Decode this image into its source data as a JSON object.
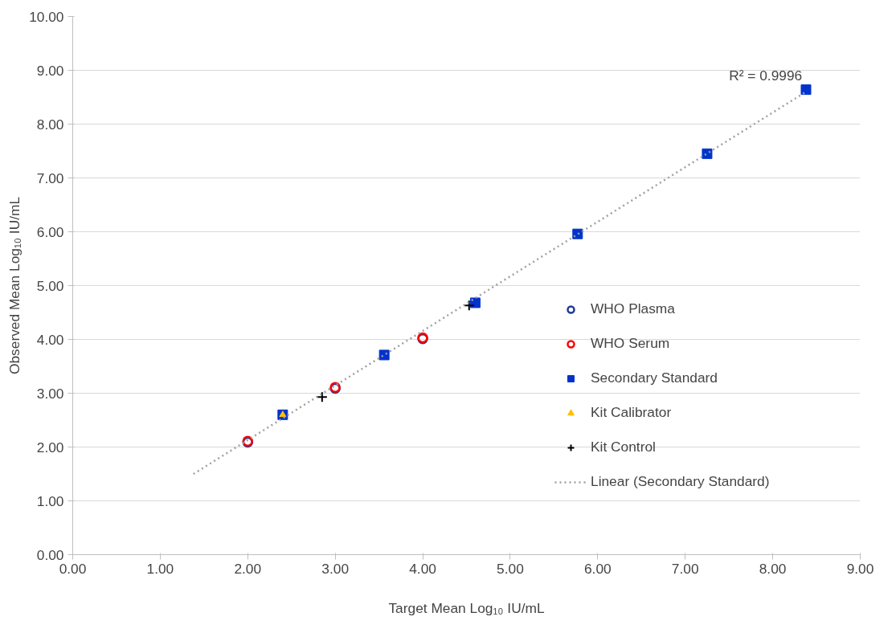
{
  "chart_data": {
    "type": "scatter",
    "xlabel": "Target Mean Log₁₀ IU/mL",
    "ylabel": "Observed Mean Log₁₀ IU/mL",
    "annotations": [
      "R² = 0.9996"
    ],
    "xlim": [
      0,
      9
    ],
    "ylim": [
      0,
      10
    ],
    "xticks": [
      {
        "value": 0,
        "label": "0.00"
      },
      {
        "value": 1,
        "label": "1.00"
      },
      {
        "value": 2,
        "label": "2.00"
      },
      {
        "value": 3,
        "label": "3.00"
      },
      {
        "value": 4,
        "label": "4.00"
      },
      {
        "value": 5,
        "label": "5.00"
      },
      {
        "value": 6,
        "label": "6.00"
      },
      {
        "value": 7,
        "label": "7.00"
      },
      {
        "value": 8,
        "label": "8.00"
      },
      {
        "value": 9,
        "label": "9.00"
      }
    ],
    "yticks": [
      {
        "value": 0,
        "label": "0.00"
      },
      {
        "value": 1,
        "label": "1.00"
      },
      {
        "value": 2,
        "label": "2.00"
      },
      {
        "value": 3,
        "label": "3.00"
      },
      {
        "value": 4,
        "label": "4.00"
      },
      {
        "value": 5,
        "label": "5.00"
      },
      {
        "value": 6,
        "label": "6.00"
      },
      {
        "value": 7,
        "label": "7.00"
      },
      {
        "value": 8,
        "label": "8.00"
      },
      {
        "value": 9,
        "label": "9.00"
      },
      {
        "value": 10,
        "label": "10.00"
      }
    ],
    "grid": "y",
    "legend": "right",
    "series": [
      {
        "name": "WHO Plasma",
        "color": "#1f3a93",
        "marker": "circle",
        "x": [
          2.0,
          3.0,
          4.0
        ],
        "values": [
          2.09,
          3.09,
          4.01
        ]
      },
      {
        "name": "WHO Serum",
        "color": "#ff0000",
        "marker": "circle",
        "x": [
          2.0,
          3.0,
          4.0
        ],
        "values": [
          2.11,
          3.11,
          4.03
        ]
      },
      {
        "name": "Secondary Standard",
        "color": "#0033cc",
        "marker": "square",
        "x": [
          2.4,
          3.56,
          4.6,
          5.77,
          7.25,
          8.38
        ],
        "values": [
          2.6,
          3.71,
          4.68,
          5.96,
          7.45,
          8.64
        ]
      },
      {
        "name": "Kit Calibrator",
        "color": "#ffc000",
        "marker": "triangle",
        "x": [
          2.4
        ],
        "values": [
          2.6
        ]
      },
      {
        "name": "Kit Control",
        "color": "#000000",
        "marker": "cross",
        "x": [
          2.85,
          4.53
        ],
        "values": [
          2.93,
          4.63
        ]
      },
      {
        "name": "Linear (Secondary Standard)",
        "type": "line",
        "line_style": "dotted",
        "color": "#a0a0a0",
        "x": [
          1.38,
          8.38
        ],
        "values": [
          1.5,
          8.6
        ]
      }
    ]
  }
}
